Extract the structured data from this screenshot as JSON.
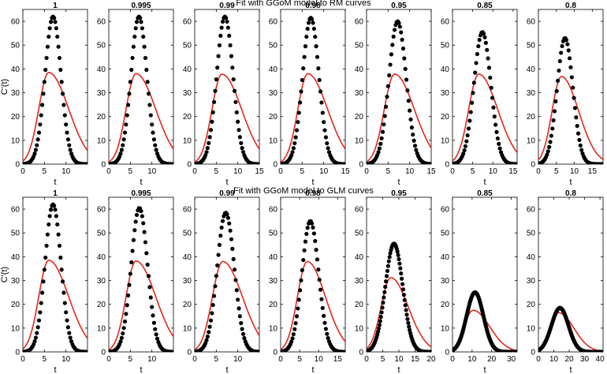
{
  "figure": {
    "row_titles": [
      "Fit with GGoM model to RM curves",
      "Fit with GGoM model to GLM curves"
    ],
    "ylabel": "C'(t)",
    "xlabel": "t"
  },
  "chart_data": [
    {
      "type": "scatter",
      "row": 0,
      "col": 0,
      "title": "1",
      "xlabel": "t",
      "ylabel": "C'(t)",
      "xlim": [
        0,
        15
      ],
      "ylim": [
        0,
        65
      ],
      "xticks": [
        0,
        5,
        10
      ],
      "yticks": [
        0,
        10,
        20,
        30,
        40,
        50,
        60
      ],
      "series": [
        {
          "kind": "dots",
          "peak": 62,
          "peak_t": 7,
          "width": 1.85
        },
        {
          "kind": "fit",
          "peak": 38.5,
          "peak_t": 6,
          "width_left": 2.3,
          "width_right": 4.6
        }
      ]
    },
    {
      "type": "scatter",
      "row": 0,
      "col": 1,
      "title": "0.995",
      "xlabel": "t",
      "ylabel": "",
      "xlim": [
        0,
        15
      ],
      "ylim": [
        0,
        65
      ],
      "xticks": [
        0,
        5,
        10
      ],
      "yticks": [
        0,
        10,
        20,
        30,
        40,
        50,
        60
      ],
      "series": [
        {
          "kind": "dots",
          "peak": 62,
          "peak_t": 7,
          "width": 1.85
        },
        {
          "kind": "fit",
          "peak": 38,
          "peak_t": 6.3,
          "width_left": 2.3,
          "width_right": 4.6
        }
      ]
    },
    {
      "type": "scatter",
      "row": 0,
      "col": 2,
      "title": "0.99",
      "xlabel": "t",
      "ylabel": "",
      "xlim": [
        0,
        15
      ],
      "ylim": [
        0,
        65
      ],
      "xticks": [
        0,
        5,
        10,
        15
      ],
      "yticks": [
        0,
        10,
        20,
        30,
        40,
        50,
        60
      ],
      "series": [
        {
          "kind": "dots",
          "peak": 62,
          "peak_t": 7,
          "width": 1.9
        },
        {
          "kind": "fit",
          "peak": 37.8,
          "peak_t": 6.3,
          "width_left": 2.3,
          "width_right": 4.6
        }
      ]
    },
    {
      "type": "scatter",
      "row": 0,
      "col": 3,
      "title": "0.98",
      "xlabel": "t",
      "ylabel": "",
      "xlim": [
        0,
        15
      ],
      "ylim": [
        0,
        65
      ],
      "xticks": [
        0,
        5,
        10,
        15
      ],
      "yticks": [
        0,
        10,
        20,
        30,
        40,
        50,
        60
      ],
      "series": [
        {
          "kind": "dots",
          "peak": 61.5,
          "peak_t": 7,
          "width": 1.9
        },
        {
          "kind": "fit",
          "peak": 38,
          "peak_t": 6.3,
          "width_left": 2.3,
          "width_right": 4.6
        }
      ]
    },
    {
      "type": "scatter",
      "row": 0,
      "col": 4,
      "title": "0.95",
      "xlabel": "t",
      "ylabel": "",
      "xlim": [
        0,
        15
      ],
      "ylim": [
        0,
        65
      ],
      "xticks": [
        0,
        5,
        10,
        15
      ],
      "yticks": [
        0,
        10,
        20,
        30,
        40,
        50,
        60
      ],
      "series": [
        {
          "kind": "dots",
          "peak": 60,
          "peak_t": 7.2,
          "width": 2.0
        },
        {
          "kind": "fit",
          "peak": 37.8,
          "peak_t": 6.5,
          "width_left": 2.4,
          "width_right": 4.6
        }
      ]
    },
    {
      "type": "scatter",
      "row": 0,
      "col": 5,
      "title": "0.85",
      "xlabel": "t",
      "ylabel": "",
      "xlim": [
        0,
        16
      ],
      "ylim": [
        0,
        65
      ],
      "xticks": [
        0,
        5,
        10,
        15
      ],
      "yticks": [
        0,
        10,
        20,
        30,
        40,
        50,
        60
      ],
      "series": [
        {
          "kind": "dots",
          "peak": 55.5,
          "peak_t": 7.4,
          "width": 2.1
        },
        {
          "kind": "fit",
          "peak": 37.8,
          "peak_t": 6.5,
          "width_left": 2.5,
          "width_right": 4.7
        }
      ]
    },
    {
      "type": "scatter",
      "row": 0,
      "col": 6,
      "title": "0.8",
      "xlabel": "t",
      "ylabel": "",
      "xlim": [
        0,
        18
      ],
      "ylim": [
        0,
        65
      ],
      "xticks": [
        0,
        5,
        10,
        15
      ],
      "yticks": [
        0,
        10,
        20,
        30,
        40,
        50,
        60
      ],
      "series": [
        {
          "kind": "dots",
          "peak": 53,
          "peak_t": 7.4,
          "width": 2.2
        },
        {
          "kind": "fit",
          "peak": 36.8,
          "peak_t": 6.4,
          "width_left": 2.6,
          "width_right": 4.8
        }
      ]
    },
    {
      "type": "scatter",
      "row": 1,
      "col": 0,
      "title": "1",
      "xlabel": "t",
      "ylabel": "C'(t)",
      "xlim": [
        0,
        15
      ],
      "ylim": [
        0,
        65
      ],
      "xticks": [
        0,
        5,
        10
      ],
      "yticks": [
        0,
        10,
        20,
        30,
        40,
        50,
        60
      ],
      "series": [
        {
          "kind": "dots",
          "peak": 62,
          "peak_t": 7,
          "width": 1.85
        },
        {
          "kind": "fit",
          "peak": 38.5,
          "peak_t": 6,
          "width_left": 2.3,
          "width_right": 4.6
        }
      ]
    },
    {
      "type": "scatter",
      "row": 1,
      "col": 1,
      "title": "0.995",
      "xlabel": "t",
      "ylabel": "",
      "xlim": [
        0,
        15
      ],
      "ylim": [
        0,
        65
      ],
      "xticks": [
        0,
        5,
        10
      ],
      "yticks": [
        0,
        10,
        20,
        30,
        40,
        50,
        60
      ],
      "series": [
        {
          "kind": "dots",
          "peak": 60.5,
          "peak_t": 7.1,
          "width": 1.9
        },
        {
          "kind": "fit",
          "peak": 38.2,
          "peak_t": 6.3,
          "width_left": 2.3,
          "width_right": 4.6
        }
      ]
    },
    {
      "type": "scatter",
      "row": 1,
      "col": 2,
      "title": "0.99",
      "xlabel": "t",
      "ylabel": "",
      "xlim": [
        0,
        15
      ],
      "ylim": [
        0,
        65
      ],
      "xticks": [
        0,
        5,
        10
      ],
      "yticks": [
        0,
        10,
        20,
        30,
        40,
        50,
        60
      ],
      "series": [
        {
          "kind": "dots",
          "peak": 58.5,
          "peak_t": 7.2,
          "width": 2.0
        },
        {
          "kind": "fit",
          "peak": 38,
          "peak_t": 6.5,
          "width_left": 2.4,
          "width_right": 4.6
        }
      ]
    },
    {
      "type": "scatter",
      "row": 1,
      "col": 3,
      "title": "0.98",
      "xlabel": "t",
      "ylabel": "",
      "xlim": [
        0,
        17
      ],
      "ylim": [
        0,
        65
      ],
      "xticks": [
        0,
        5,
        10,
        15
      ],
      "yticks": [
        0,
        10,
        20,
        30,
        40,
        50,
        60
      ],
      "series": [
        {
          "kind": "dots",
          "peak": 55,
          "peak_t": 7.8,
          "width": 2.2
        },
        {
          "kind": "fit",
          "peak": 38,
          "peak_t": 7,
          "width_left": 2.6,
          "width_right": 4.8
        }
      ]
    },
    {
      "type": "scatter",
      "row": 1,
      "col": 4,
      "title": "0.95",
      "xlabel": "t",
      "ylabel": "",
      "xlim": [
        0,
        20
      ],
      "ylim": [
        0,
        65
      ],
      "xticks": [
        0,
        5,
        10,
        15,
        20
      ],
      "yticks": [
        0,
        10,
        20,
        30,
        40,
        50,
        60
      ],
      "series": [
        {
          "kind": "dots",
          "peak": 45.5,
          "peak_t": 8.5,
          "width": 2.7
        },
        {
          "kind": "fit",
          "peak": 31.2,
          "peak_t": 7.5,
          "width_left": 3.0,
          "width_right": 5.4
        }
      ]
    },
    {
      "type": "scatter",
      "row": 1,
      "col": 5,
      "title": "0.85",
      "xlabel": "t",
      "ylabel": "",
      "xlim": [
        0,
        33
      ],
      "ylim": [
        0,
        65
      ],
      "xticks": [
        0,
        10,
        20,
        30
      ],
      "yticks": [
        0,
        10,
        20,
        30,
        40,
        50,
        60
      ],
      "series": [
        {
          "kind": "dots",
          "peak": 25,
          "peak_t": 11.5,
          "width": 4.3
        },
        {
          "kind": "fit",
          "peak": 17.5,
          "peak_t": 10.5,
          "width_left": 4.6,
          "width_right": 8.5
        }
      ]
    },
    {
      "type": "scatter",
      "row": 1,
      "col": 6,
      "title": "0.8",
      "xlabel": "t",
      "ylabel": "",
      "xlim": [
        0,
        42
      ],
      "ylim": [
        0,
        65
      ],
      "xticks": [
        0,
        10,
        20,
        30,
        40
      ],
      "yticks": [
        0,
        10,
        20,
        30,
        40,
        50,
        60
      ],
      "series": [
        {
          "kind": "dots",
          "peak": 18.5,
          "peak_t": 14,
          "width": 5.5
        },
        {
          "kind": "fit",
          "peak": 16.5,
          "peak_t": 13,
          "width_left": 5.5,
          "width_right": 10
        }
      ]
    }
  ],
  "colors": {
    "dots": "#000000",
    "fit": "#e3261d",
    "axes": "#000000"
  }
}
